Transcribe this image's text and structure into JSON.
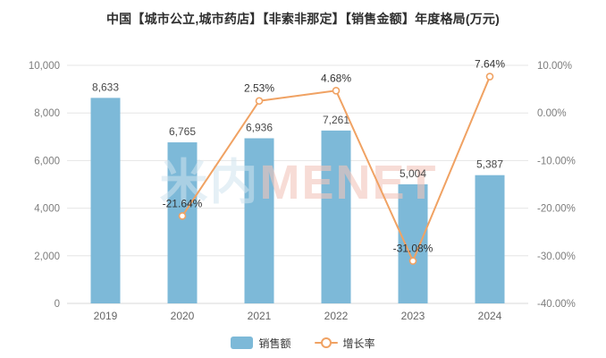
{
  "title": "中国【城市公立,城市药店】【非索非那定】【销售金额】年度格局(万元)",
  "watermark": {
    "cn": "米内",
    "en": "MENET"
  },
  "legend": {
    "items": [
      {
        "label": "销售额",
        "type": "bar"
      },
      {
        "label": "增长率",
        "type": "line"
      }
    ]
  },
  "chart_data": {
    "type": "bar+line",
    "title": "中国【城市公立,城市药店】【非索非那定】【销售金额】年度格局(万元)",
    "categories": [
      "2019",
      "2020",
      "2021",
      "2022",
      "2023",
      "2024"
    ],
    "series": [
      {
        "name": "销售额",
        "type": "bar",
        "axis": "left",
        "values": [
          8633,
          6765,
          6936,
          7261,
          5004,
          5387
        ],
        "labels": [
          "8,633",
          "6,765",
          "6,936",
          "7,261",
          "5,004",
          "5,387"
        ]
      },
      {
        "name": "增长率",
        "type": "line",
        "axis": "right",
        "values": [
          null,
          -21.64,
          2.53,
          4.68,
          -31.08,
          7.64
        ],
        "labels": [
          null,
          "-21.64%",
          "2.53%",
          "4.68%",
          "-31.08%",
          "7.64%"
        ]
      }
    ],
    "left_axis": {
      "min": 0,
      "max": 10000,
      "ticks": [
        "0",
        "2,000",
        "4,000",
        "6,000",
        "8,000",
        "10,000"
      ]
    },
    "right_axis": {
      "min": -40,
      "max": 10,
      "ticks": [
        "-40.00%",
        "-30.00%",
        "-20.00%",
        "-10.00%",
        "0.00%",
        "10.00%"
      ]
    },
    "grid": true,
    "legend_position": "bottom",
    "colors": {
      "bar": "#7db9d8",
      "line": "#f0a263",
      "bar_label": "#4a4a4a",
      "percent_label": "#333333",
      "axis_label": "#7d7d7d",
      "x_label": "#666666",
      "grid": "#e6e6e6",
      "axis_line": "#d9d9d9",
      "title": "#2f2f2f",
      "watermark_cn": "#cfe3ee",
      "watermark_en": "#f2c4ba"
    }
  }
}
